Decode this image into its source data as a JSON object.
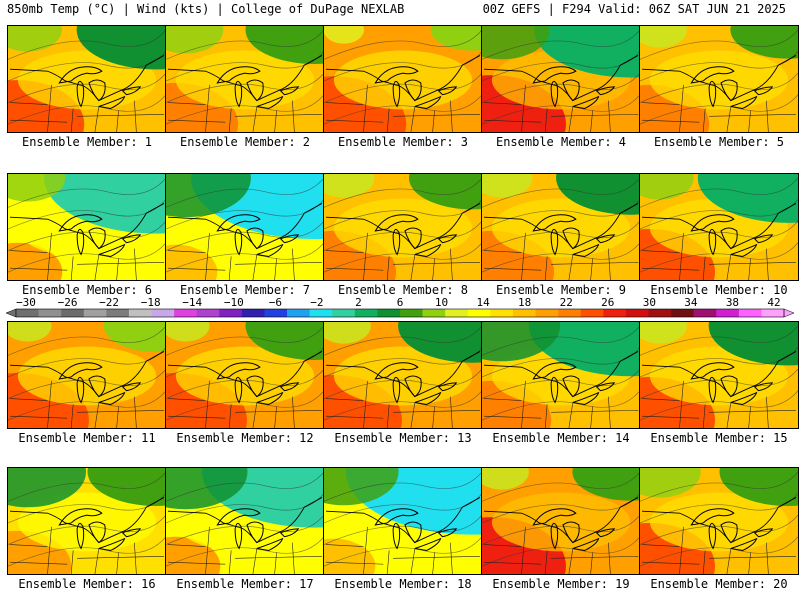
{
  "header": {
    "left": "850mb Temp (°C) | Wind (kts) | College of DuPage NEXLAB",
    "right": "00Z GEFS | F294 Valid: 06Z SAT JUN 21 2025"
  },
  "label_prefix": "Ensemble Member: ",
  "members": [
    {
      "id": 1,
      "label": "Ensemble Member: 1",
      "warmth": 0.62,
      "cool_ne": 0.55,
      "cool_nw": 0.35
    },
    {
      "id": 2,
      "label": "Ensemble Member: 2",
      "warmth": 0.55,
      "cool_ne": 0.45,
      "cool_nw": 0.4
    },
    {
      "id": 3,
      "label": "Ensemble Member: 3",
      "warmth": 0.72,
      "cool_ne": 0.2,
      "cool_nw": 0.15
    },
    {
      "id": 4,
      "label": "Ensemble Member: 4",
      "warmth": 0.75,
      "cool_ne": 0.7,
      "cool_nw": 0.55
    },
    {
      "id": 5,
      "label": "Ensemble Member: 5",
      "warmth": 0.5,
      "cool_ne": 0.35,
      "cool_nw": 0.25
    },
    {
      "id": 6,
      "label": "Ensemble Member: 6",
      "warmth": 0.25,
      "cool_ne": 0.85,
      "cool_nw": 0.4
    },
    {
      "id": 7,
      "label": "Ensemble Member: 7",
      "warmth": 0.2,
      "cool_ne": 0.95,
      "cool_nw": 0.8
    },
    {
      "id": 8,
      "label": "Ensemble Member: 8",
      "warmth": 0.55,
      "cool_ne": 0.4,
      "cool_nw": 0.3
    },
    {
      "id": 9,
      "label": "Ensemble Member: 9",
      "warmth": 0.55,
      "cool_ne": 0.5,
      "cool_nw": 0.3
    },
    {
      "id": 10,
      "label": "Ensemble Member: 10",
      "warmth": 0.6,
      "cool_ne": 0.65,
      "cool_nw": 0.35
    },
    {
      "id": 11,
      "label": "Ensemble Member: 11",
      "warmth": 0.7,
      "cool_ne": 0.3,
      "cool_nw": 0.2
    },
    {
      "id": 12,
      "label": "Ensemble Member: 12",
      "warmth": 0.7,
      "cool_ne": 0.45,
      "cool_nw": 0.2
    },
    {
      "id": 13,
      "label": "Ensemble Member: 13",
      "warmth": 0.65,
      "cool_ne": 0.5,
      "cool_nw": 0.25
    },
    {
      "id": 14,
      "label": "Ensemble Member: 14",
      "warmth": 0.5,
      "cool_ne": 0.75,
      "cool_nw": 0.7
    },
    {
      "id": 15,
      "label": "Ensemble Member: 15",
      "warmth": 0.6,
      "cool_ne": 0.55,
      "cool_nw": 0.25
    },
    {
      "id": 16,
      "label": "Ensemble Member: 16",
      "warmth": 0.4,
      "cool_ne": 0.45,
      "cool_nw": 0.7
    },
    {
      "id": 17,
      "label": "Ensemble Member: 17",
      "warmth": 0.25,
      "cool_ne": 0.85,
      "cool_nw": 0.75
    },
    {
      "id": 18,
      "label": "Ensemble Member: 18",
      "warmth": 0.2,
      "cool_ne": 0.98,
      "cool_nw": 0.65
    },
    {
      "id": 19,
      "label": "Ensemble Member: 19",
      "warmth": 0.75,
      "cool_ne": 0.35,
      "cool_nw": 0.25
    },
    {
      "id": 20,
      "label": "Ensemble Member: 20",
      "warmth": 0.6,
      "cool_ne": 0.45,
      "cool_nw": 0.45
    }
  ],
  "colorbar": {
    "ticks": [
      "−30",
      "−26",
      "−22",
      "−18",
      "−14",
      "−10",
      "−6",
      "−2",
      "2",
      "6",
      "10",
      "14",
      "18",
      "22",
      "26",
      "30",
      "34",
      "38",
      "42"
    ],
    "colors": [
      "#707070",
      "#909090",
      "#6c6c6c",
      "#a0a0a0",
      "#7c7c7c",
      "#c0c0c0",
      "#c8a8e8",
      "#e040e0",
      "#b040d0",
      "#8020c0",
      "#3020b0",
      "#2040e0",
      "#20a0f0",
      "#20e0f0",
      "#30d0a0",
      "#10b060",
      "#109030",
      "#40a010",
      "#90d010",
      "#e0f020",
      "#ffff00",
      "#ffe000",
      "#ffc000",
      "#ffa000",
      "#ff8000",
      "#ff5000",
      "#f02010",
      "#d01010",
      "#a01010",
      "#701010",
      "#a01070",
      "#d020d0",
      "#ff60ff",
      "#ffa0ff"
    ]
  }
}
